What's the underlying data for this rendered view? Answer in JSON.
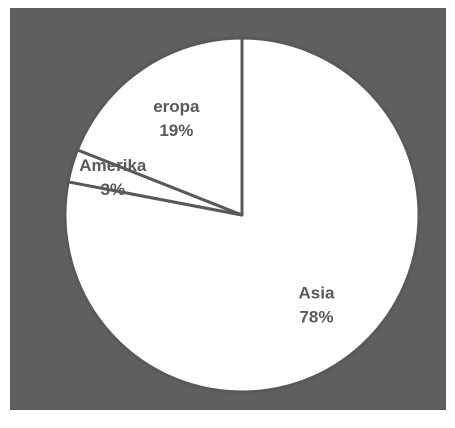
{
  "chart_data": {
    "type": "pie",
    "categories": [
      "Asia",
      "Amerika",
      "eropa"
    ],
    "values": [
      78,
      3,
      19
    ],
    "value_labels": [
      "78%",
      "3%",
      "19%"
    ],
    "background": "#5f5f5f",
    "color": "#ffffff",
    "edge_color": "#595959"
  }
}
